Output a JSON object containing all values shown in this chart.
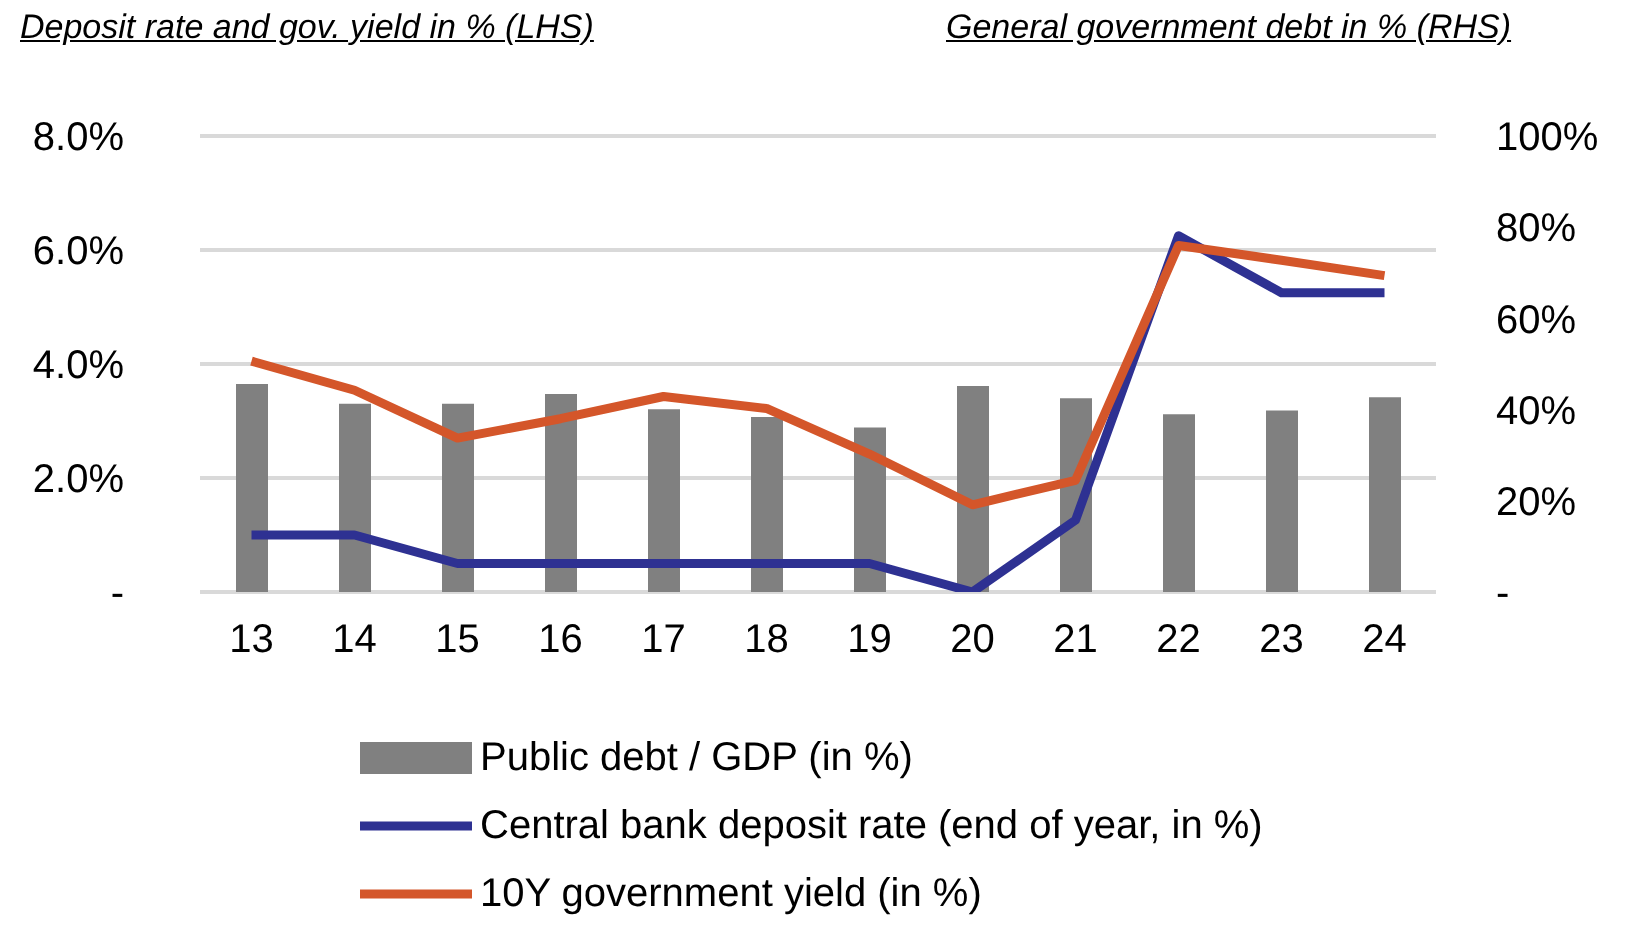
{
  "chart_data": {
    "type": "line",
    "annotations": [
      "Deposit rate and gov. yield in % (LHS)",
      "General government debt in % (RHS)"
    ],
    "categories": [
      "13",
      "14",
      "15",
      "16",
      "17",
      "18",
      "19",
      "20",
      "21",
      "22",
      "23",
      "24"
    ],
    "series": [
      {
        "name": "Public debt / GDP (in %)",
        "type": "bar",
        "axis": "y2",
        "color": "#808080",
        "values": [
          45.6,
          41.3,
          41.3,
          43.4,
          40.1,
          38.4,
          36.1,
          45.2,
          42.5,
          39,
          39.8,
          42.7
        ]
      },
      {
        "name": "Central bank deposit rate (end of year, in %)",
        "color": "#2e3192",
        "values": [
          1.0,
          1.0,
          0.5,
          0.5,
          0.5,
          0.5,
          0.5,
          0,
          1.26,
          6.25,
          5.25,
          5.25
        ]
      },
      {
        "name": "10Y government yield (in %)",
        "color": "#d4562a",
        "values": [
          4.05,
          3.54,
          2.7,
          3.04,
          3.43,
          3.22,
          2.42,
          1.53,
          1.96,
          6.08,
          5.82,
          5.55
        ]
      }
    ],
    "ylim": [
      0,
      8
    ],
    "yticks": [
      {
        "value": 0,
        "label": "-"
      },
      {
        "value": 2,
        "label": "2.0%"
      },
      {
        "value": 4,
        "label": "4.0%"
      },
      {
        "value": 6,
        "label": "6.0%"
      },
      {
        "value": 8,
        "label": "8.0%"
      }
    ],
    "y2lim": [
      0,
      100
    ],
    "y2ticks": [
      {
        "value": 0,
        "label": "-"
      },
      {
        "value": 20,
        "label": "20%"
      },
      {
        "value": 40,
        "label": "40%"
      },
      {
        "value": 60,
        "label": "60%"
      },
      {
        "value": 80,
        "label": "80%"
      },
      {
        "value": 100,
        "label": "100%"
      }
    ],
    "grid": "y",
    "legend": "bottom",
    "marker": "none",
    "line_style": "solid"
  }
}
